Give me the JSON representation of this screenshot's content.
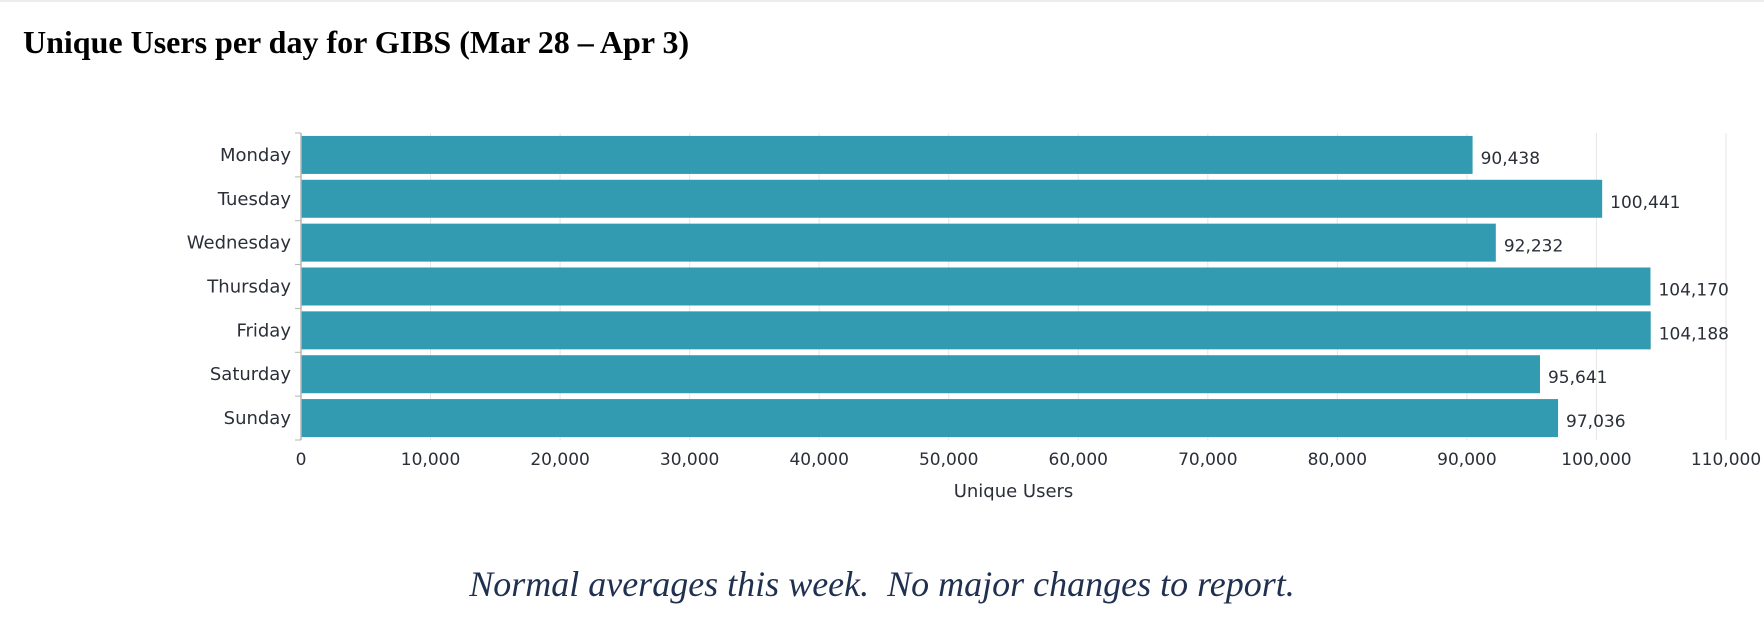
{
  "page": {
    "title": "Unique Users per day for GIBS (Mar 28 – Apr 3)",
    "footnote": "Normal averages this week.  No major changes to report."
  },
  "colors": {
    "bar": "#329bb2",
    "grid": "#e6e6e6",
    "axis": "#b5b5b5",
    "text": "#2b2f38"
  },
  "chart_data": {
    "type": "bar",
    "orientation": "horizontal",
    "categories": [
      "Monday",
      "Tuesday",
      "Wednesday",
      "Thursday",
      "Friday",
      "Saturday",
      "Sunday"
    ],
    "values": [
      90438,
      100441,
      92232,
      104170,
      104188,
      95641,
      97036
    ],
    "value_labels": [
      "90,438",
      "100,441",
      "92,232",
      "104,170",
      "104,188",
      "95,641",
      "97,036"
    ],
    "xlabel": "Unique Users",
    "xlim": [
      0,
      110000
    ],
    "x_ticks": [
      0,
      10000,
      20000,
      30000,
      40000,
      50000,
      60000,
      70000,
      80000,
      90000,
      100000,
      110000
    ],
    "x_tick_labels": [
      "0",
      "10,000",
      "20,000",
      "30,000",
      "40,000",
      "50,000",
      "60,000",
      "70,000",
      "80,000",
      "90,000",
      "100,000",
      "110,000"
    ],
    "grid": true
  }
}
